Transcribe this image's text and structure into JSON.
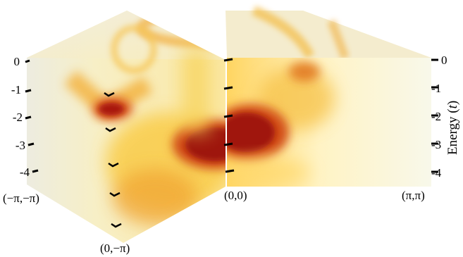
{
  "chart_data": {
    "type": "heatmap",
    "ylabel": "Energy (t)",
    "ylabel_parts": {
      "main": "Energy (",
      "var": "t",
      "close": ")"
    },
    "energy_ticks": [
      0,
      -1,
      -2,
      -3,
      -4
    ],
    "energy_tick_labels": [
      "0",
      "-1",
      "-2",
      "-3",
      "-4"
    ],
    "energy_range": [
      -4.5,
      0.3
    ],
    "k_path_labels": {
      "left": "(−π,−π)",
      "front": "(0,−π)",
      "center": "(0,0)",
      "right": "(π,π)"
    },
    "colormap": [
      "#f4f4ef",
      "#fff6c0",
      "#ffd84a",
      "#f29a1c",
      "#d24a12",
      "#9c1410"
    ],
    "intensity_peaks": [
      {
        "face": "left",
        "k": "(−π,−π) to (0,−π)",
        "k_frac": 0.45,
        "energy": -1.9,
        "intensity": 0.95
      },
      {
        "face": "left",
        "k": "(0,−π) to (0,0)",
        "k_frac": 0.55,
        "energy": -3.1,
        "intensity": 1.0
      },
      {
        "face": "right",
        "k": "(0,0) to (π,π)",
        "k_frac": 0.1,
        "energy": -2.8,
        "intensity": 1.0
      },
      {
        "face": "right",
        "k": "(0,0) to (π,π)",
        "k_frac": 0.45,
        "energy": -0.6,
        "intensity": 0.6
      }
    ]
  }
}
